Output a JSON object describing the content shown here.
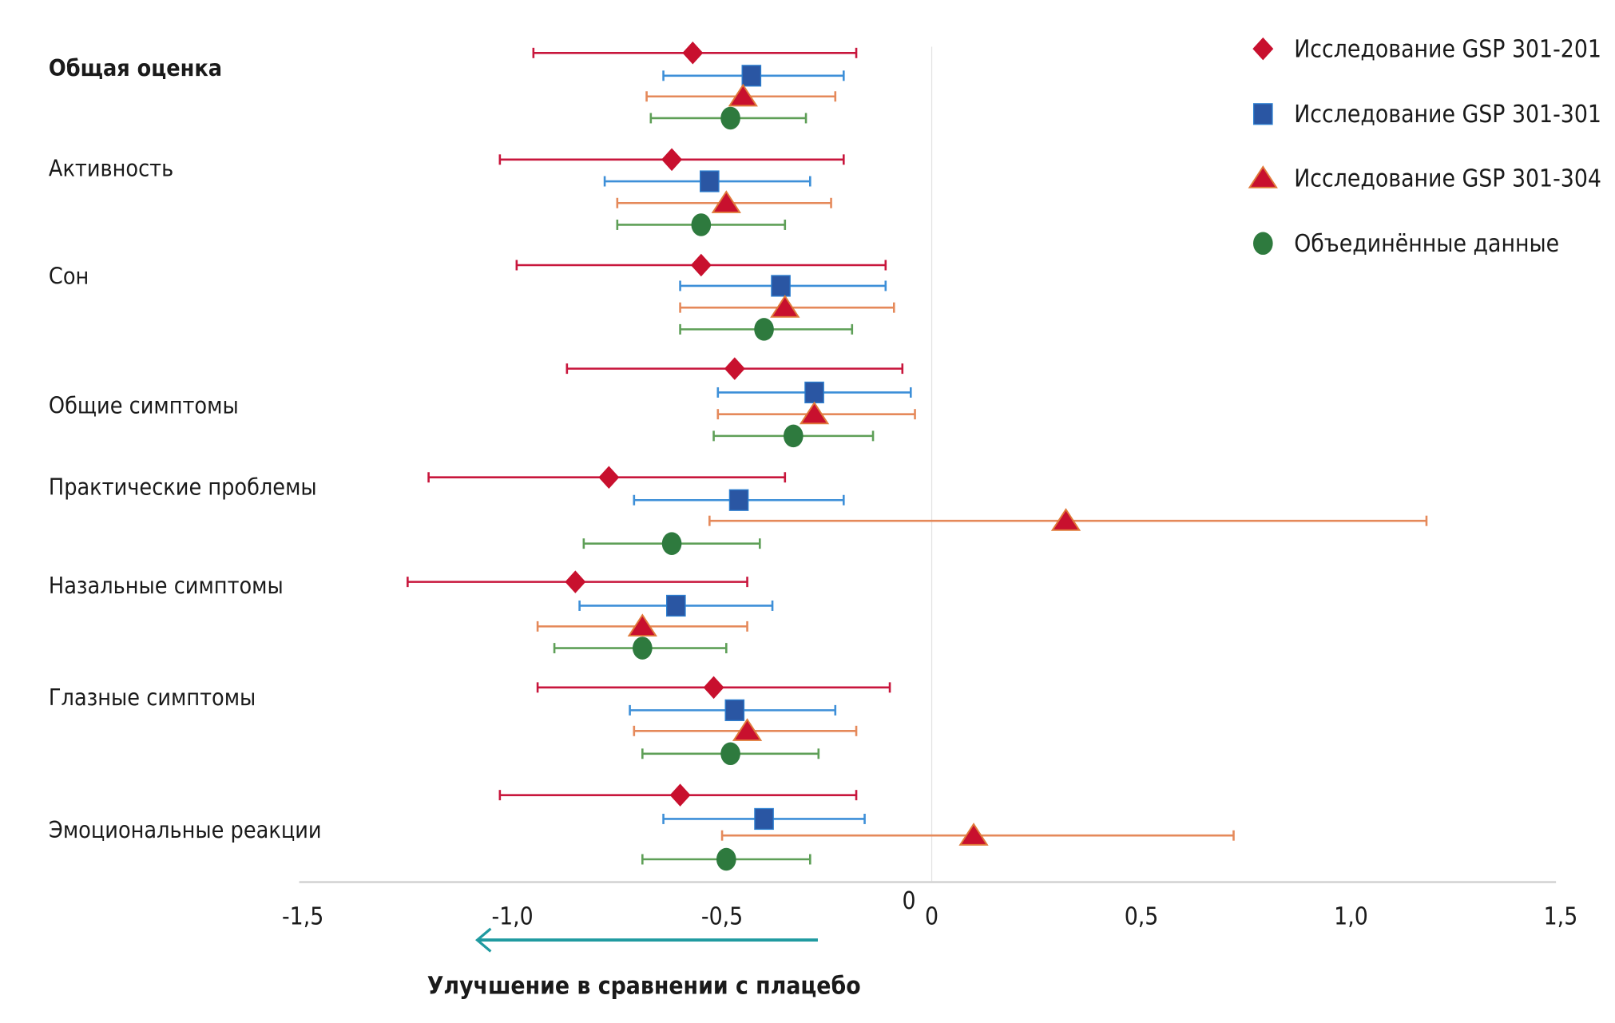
{
  "chart_data": {
    "type": "forest",
    "xlabel": "Улучшение в сравнении с плацебо",
    "xlim": [
      -1.5,
      1.5
    ],
    "xticks": [
      "-1,5",
      "-1,0",
      "-0,5",
      "0",
      "0,5",
      "1,0",
      "1,5"
    ],
    "xtick_values": [
      -1.5,
      -1.0,
      -0.5,
      0,
      0.5,
      1.0,
      1.5
    ],
    "zero_label": "0",
    "arrow_direction": "left",
    "grid": false,
    "legend_placement": "top-right",
    "series": [
      {
        "name": "Исследование GSP 301-201",
        "marker": "diamond",
        "color": "#c8102e",
        "line_color": "#c8163c"
      },
      {
        "name": "Исследование GSP 301-301",
        "marker": "square",
        "color": "#2a56a3",
        "line_color": "#3d8fd8"
      },
      {
        "name": "Исследование GSP 301-304",
        "marker": "triangle",
        "color": "#c8102e",
        "line_color": "#e5895a"
      },
      {
        "name": "Объединённые данные",
        "marker": "circle",
        "color": "#2e7a3e",
        "line_color": "#5e9f57"
      }
    ],
    "categories": [
      {
        "label": "Общая оценка",
        "bold": true,
        "values": [
          [
            -0.57,
            -0.95,
            -0.18
          ],
          [
            -0.43,
            -0.64,
            -0.21
          ],
          [
            -0.45,
            -0.68,
            -0.23
          ],
          [
            -0.48,
            -0.67,
            -0.3
          ]
        ]
      },
      {
        "label": "Активность",
        "values": [
          [
            -0.62,
            -1.03,
            -0.21
          ],
          [
            -0.53,
            -0.78,
            -0.29
          ],
          [
            -0.49,
            -0.75,
            -0.24
          ],
          [
            -0.55,
            -0.75,
            -0.35
          ]
        ]
      },
      {
        "label": "Сон",
        "values": [
          [
            -0.55,
            -0.99,
            -0.11
          ],
          [
            -0.36,
            -0.6,
            -0.11
          ],
          [
            -0.35,
            -0.6,
            -0.09
          ],
          [
            -0.4,
            -0.6,
            -0.19
          ]
        ]
      },
      {
        "label": "Общие симптомы",
        "values": [
          [
            -0.47,
            -0.87,
            -0.07
          ],
          [
            -0.28,
            -0.51,
            -0.05
          ],
          [
            -0.28,
            -0.51,
            -0.04
          ],
          [
            -0.33,
            -0.52,
            -0.14
          ]
        ]
      },
      {
        "label": "Практические проблемы",
        "values": [
          [
            -0.77,
            -1.2,
            -0.35
          ],
          [
            -0.46,
            -0.71,
            -0.21
          ],
          [
            0.32,
            -0.53,
            1.18
          ],
          [
            -0.62,
            -0.83,
            -0.41
          ]
        ]
      },
      {
        "label": "Назальные симптомы",
        "values": [
          [
            -0.85,
            -1.25,
            -0.44
          ],
          [
            -0.61,
            -0.84,
            -0.38
          ],
          [
            -0.69,
            -0.94,
            -0.44
          ],
          [
            -0.69,
            -0.9,
            -0.49
          ]
        ]
      },
      {
        "label": "Глазные симптомы",
        "values": [
          [
            -0.52,
            -0.94,
            -0.1
          ],
          [
            -0.47,
            -0.72,
            -0.23
          ],
          [
            -0.44,
            -0.71,
            -0.18
          ],
          [
            -0.48,
            -0.69,
            -0.27
          ]
        ]
      },
      {
        "label": "Эмоциональные реакции",
        "values": [
          [
            -0.6,
            -1.03,
            -0.18
          ],
          [
            -0.4,
            -0.64,
            -0.16
          ],
          [
            0.1,
            -0.5,
            0.72
          ],
          [
            -0.49,
            -0.69,
            -0.29
          ]
        ]
      }
    ]
  }
}
